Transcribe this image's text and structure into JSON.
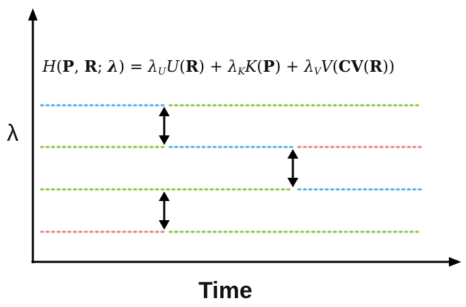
{
  "equation": {
    "H": "H",
    "P": "P",
    "R": "R",
    "lambda_bold": "λ",
    "lambda": "λ",
    "U": "U",
    "K": "K",
    "V": "V",
    "CV": "CV",
    "sub_U": "U",
    "sub_K": "K",
    "sub_V": "V"
  },
  "axes": {
    "xlabel": "Time",
    "ylabel": "λ"
  },
  "colors": {
    "blue": "#4fb0e8",
    "green": "#8cc63f",
    "red": "#f08080",
    "axis": "#000000"
  }
}
